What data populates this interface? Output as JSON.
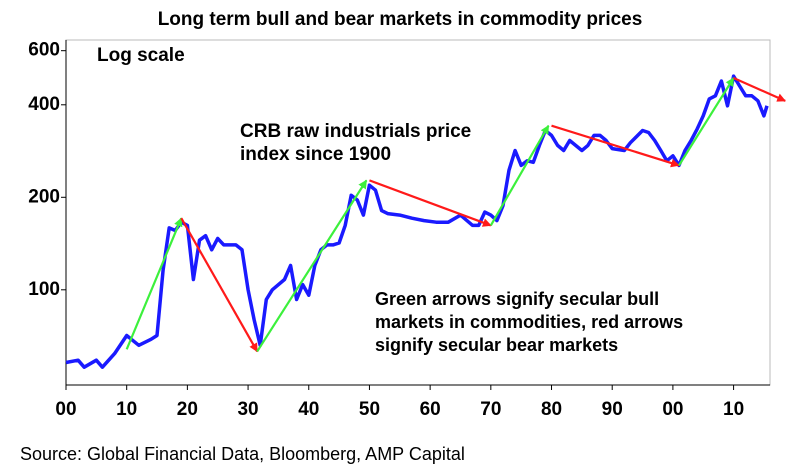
{
  "chart_data": {
    "type": "line",
    "title": "Long term bull and bear markets in commodity prices",
    "scale_note": "Log scale",
    "log_scale": true,
    "x": [
      1900,
      1902,
      1903,
      1905,
      1906,
      1908,
      1910,
      1912,
      1914,
      1915,
      1916,
      1917,
      1918,
      1919,
      1920,
      1921,
      1922,
      1923,
      1924,
      1925,
      1926,
      1928,
      1929,
      1930,
      1931,
      1932,
      1933,
      1934,
      1936,
      1937,
      1938,
      1939,
      1940,
      1941,
      1942,
      1943,
      1944,
      1945,
      1946,
      1947,
      1948,
      1949,
      1950,
      1951,
      1952,
      1953,
      1955,
      1957,
      1959,
      1961,
      1963,
      1965,
      1967,
      1968,
      1969,
      1970,
      1971,
      1972,
      1973,
      1974,
      1975,
      1976,
      1977,
      1978,
      1979,
      1980,
      1981,
      1982,
      1983,
      1985,
      1986,
      1987,
      1988,
      1989,
      1990,
      1992,
      1993,
      1995,
      1996,
      1997,
      1998,
      1999,
      2000,
      2001,
      2002,
      2003,
      2004,
      2005,
      2006,
      2007,
      2008,
      2009,
      2010,
      2011,
      2012,
      2013,
      2014,
      2015,
      2015.5
    ],
    "series": [
      {
        "color": "#1a1aff",
        "values": [
          58,
          59,
          56,
          59,
          56,
          62,
          71,
          66,
          69,
          71,
          116,
          159,
          156,
          166,
          162,
          108,
          145,
          150,
          135,
          147,
          140,
          140,
          135,
          100,
          80,
          66,
          93,
          100,
          108,
          120,
          93,
          104,
          96,
          120,
          135,
          140,
          140,
          142,
          162,
          203,
          196,
          175,
          219,
          211,
          181,
          177,
          175,
          171,
          168,
          166,
          166,
          175,
          162,
          162,
          179,
          175,
          168,
          188,
          245,
          284,
          254,
          263,
          260,
          295,
          330,
          318,
          295,
          284,
          306,
          284,
          295,
          318,
          318,
          306,
          288,
          284,
          301,
          330,
          325,
          306,
          284,
          263,
          273,
          254,
          284,
          306,
          334,
          368,
          418,
          428,
          478,
          397,
          496,
          460,
          428,
          428,
          412,
          368,
          397
        ]
      }
    ],
    "arrows": [
      {
        "color": "#3cf03c",
        "x": [
          1910,
          1919
        ],
        "y": [
          64,
          171
        ]
      },
      {
        "color": "#ff1a1a",
        "x": [
          1919,
          1931.5
        ],
        "y": [
          171,
          63
        ]
      },
      {
        "color": "#3cf03c",
        "x": [
          1931.5,
          1949.5
        ],
        "y": [
          63,
          227
        ]
      },
      {
        "color": "#ff1a1a",
        "x": [
          1950,
          1970
        ],
        "y": [
          227,
          162
        ]
      },
      {
        "color": "#3cf03c",
        "x": [
          1970,
          1979.5
        ],
        "y": [
          162,
          342
        ]
      },
      {
        "color": "#ff1a1a",
        "x": [
          1980,
          2001
        ],
        "y": [
          342,
          254
        ]
      },
      {
        "color": "#3cf03c",
        "x": [
          2001,
          2010
        ],
        "y": [
          254,
          489
        ]
      },
      {
        "color": "#ff1a1a",
        "x": [
          2010,
          2018.5
        ],
        "y": [
          489,
          412
        ]
      }
    ],
    "xlim": [
      1900,
      2016
    ],
    "ylim": [
      49,
      650
    ],
    "xticks": [
      {
        "value": 1900,
        "label": "00"
      },
      {
        "value": 1910,
        "label": "10"
      },
      {
        "value": 1920,
        "label": "20"
      },
      {
        "value": 1930,
        "label": "30"
      },
      {
        "value": 1940,
        "label": "40"
      },
      {
        "value": 1950,
        "label": "50"
      },
      {
        "value": 1960,
        "label": "60"
      },
      {
        "value": 1970,
        "label": "70"
      },
      {
        "value": 1980,
        "label": "80"
      },
      {
        "value": 1990,
        "label": "90"
      },
      {
        "value": 2000,
        "label": "00"
      },
      {
        "value": 2010,
        "label": "10"
      }
    ],
    "yticks": [
      100,
      200,
      400,
      600
    ],
    "series_note": [
      "CRB raw industrials price",
      "index since 1900"
    ],
    "arrow_note": [
      "Green arrows signify secular bull",
      "markets in commodities, red arrows",
      "signify secular bear markets"
    ],
    "source": "Source: Global Financial Data, Bloomberg, AMP Capital"
  }
}
